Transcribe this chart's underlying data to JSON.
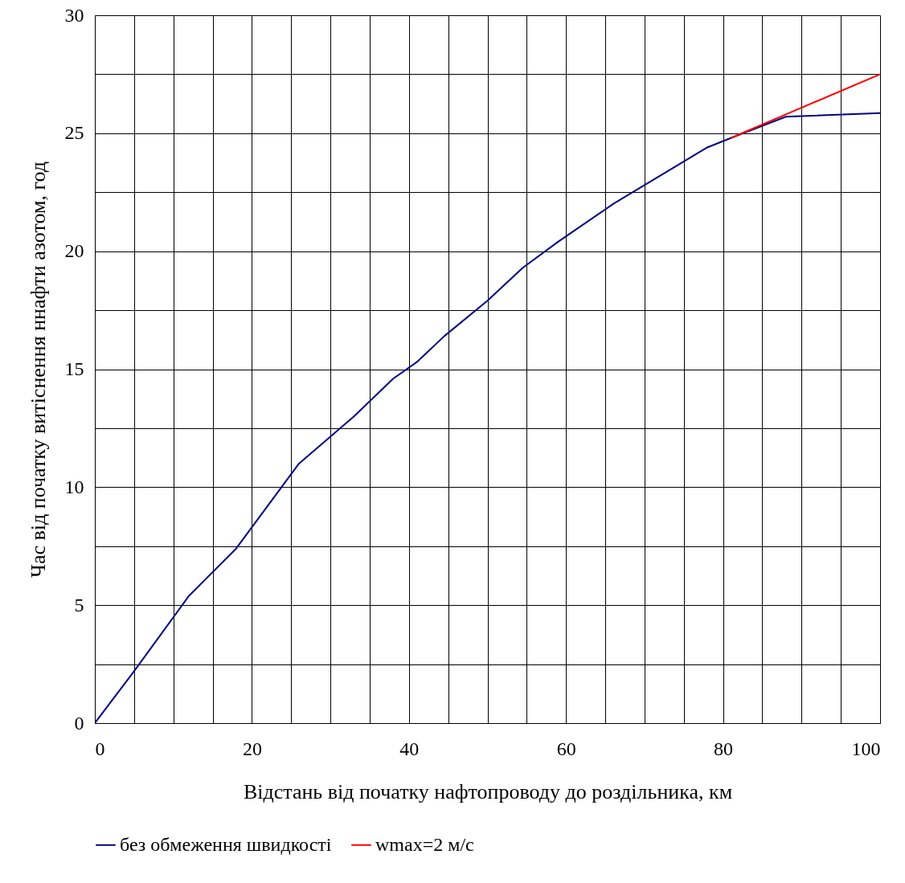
{
  "chart_data": {
    "type": "line",
    "xlabel": "Відстань від початку нафтопроводу до роздільника, км",
    "ylabel": "Час від початку витіснення ннафти азотом, год",
    "xlim": [
      0,
      100
    ],
    "ylim": [
      0,
      30
    ],
    "xticks": [
      0,
      {
        "value": 5,
        "label": null
      },
      {
        "value": 10,
        "label": null
      },
      {
        "value": 15,
        "label": null
      },
      20,
      {
        "value": 25,
        "label": null
      },
      {
        "value": 30,
        "label": null
      },
      {
        "value": 35,
        "label": null
      },
      40,
      {
        "value": 45,
        "label": null
      },
      {
        "value": 50,
        "label": null
      },
      {
        "value": 55,
        "label": null
      },
      60,
      {
        "value": 65,
        "label": null
      },
      {
        "value": 70,
        "label": null
      },
      {
        "value": 75,
        "label": null
      },
      80,
      {
        "value": 85,
        "label": null
      },
      {
        "value": 90,
        "label": null
      },
      {
        "value": 95,
        "label": null
      },
      100
    ],
    "yticks": [
      0,
      {
        "value": 2.5,
        "label": null
      },
      5,
      {
        "value": 7.5,
        "label": null
      },
      10,
      {
        "value": 12.5,
        "label": null
      },
      15,
      {
        "value": 17.5,
        "label": null
      },
      20,
      {
        "value": 22.5,
        "label": null
      },
      25,
      {
        "value": 27.5,
        "label": null
      },
      30
    ],
    "grid": true,
    "legend": "bottom",
    "marker": "none",
    "line_style": "solid",
    "series": [
      {
        "name": "без обмеження швидкості",
        "color": "#000080",
        "x": [
          0,
          5,
          12,
          18,
          26,
          33,
          38,
          41,
          44.5,
          50,
          54.5,
          59,
          66,
          72,
          78,
          81,
          88,
          100
        ],
        "values": [
          0,
          2.2,
          5.4,
          7.4,
          11.0,
          13.0,
          14.6,
          15.3,
          16.4,
          17.9,
          19.3,
          20.4,
          22.0,
          23.2,
          24.4,
          24.8,
          25.7,
          25.85
        ]
      },
      {
        "name": "wmax=2 м/с",
        "color": "#ff0000",
        "x": [
          81,
          88,
          100
        ],
        "values": [
          24.8,
          25.8,
          27.5
        ]
      }
    ]
  }
}
